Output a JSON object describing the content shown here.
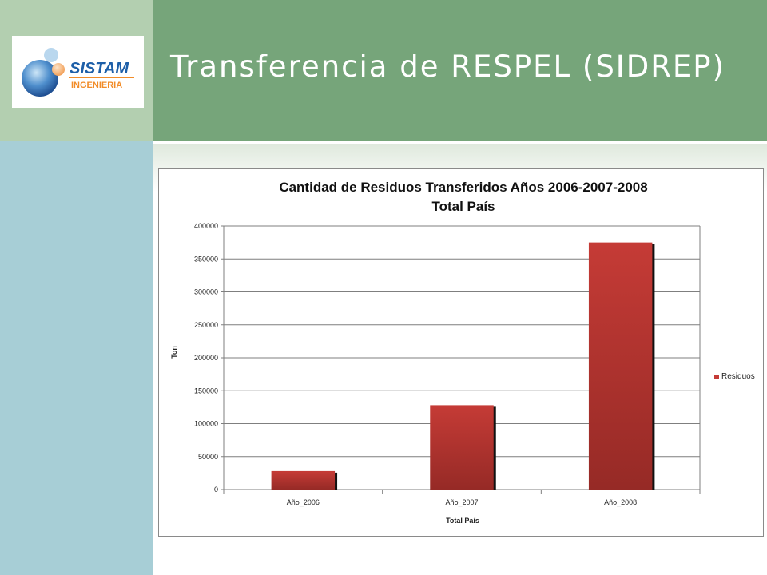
{
  "header": {
    "title": "Transferencia de RESPEL (SIDREP)"
  },
  "logo": {
    "line1": "SISTAM",
    "line2": "INGENIERIA"
  },
  "colors": {
    "header_green": "#76a57a",
    "left_top_green": "#b3cfb0",
    "left_blue": "#a7ced6",
    "bar_red": "#c53b36",
    "bar_dark": "#962a26"
  },
  "chart_data": {
    "type": "bar",
    "title": "Cantidad de Residuos Transferidos Años 2006-2007-2008",
    "subtitle": "Total País",
    "xlabel": "Total País",
    "ylabel": "Ton",
    "categories": [
      "Año_2006",
      "Año_2007",
      "Año_2008"
    ],
    "series": [
      {
        "name": "Residuos",
        "values": [
          28000,
          128000,
          375000
        ]
      }
    ],
    "ylim": [
      0,
      400000
    ],
    "yticks": [
      0,
      50000,
      100000,
      150000,
      200000,
      250000,
      300000,
      350000,
      400000
    ],
    "grid": true,
    "legend": "right"
  }
}
